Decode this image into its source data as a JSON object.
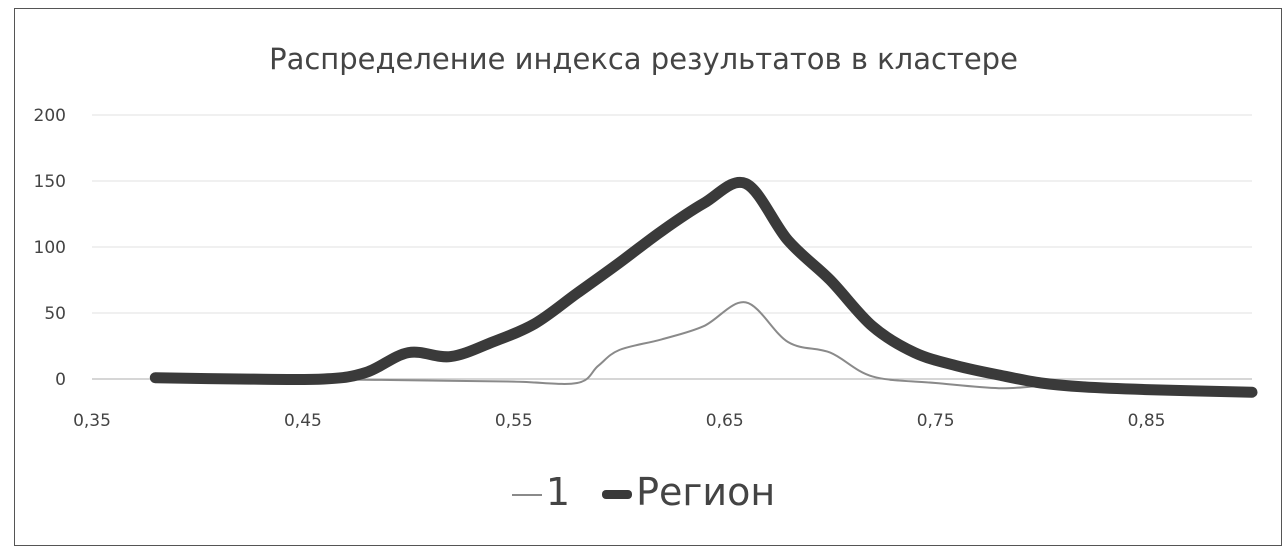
{
  "chart_data": {
    "type": "line",
    "title": "Распределение индекса результатов в кластере",
    "xlabel": "",
    "ylabel": "",
    "xlim": [
      0.35,
      0.9
    ],
    "ylim": [
      0,
      200
    ],
    "x_ticks": [
      "0,35",
      "0,45",
      "0,55",
      "0,65",
      "0,75",
      "0,85"
    ],
    "y_ticks": [
      "0",
      "50",
      "100",
      "150",
      "200"
    ],
    "grid": true,
    "legend_position": "bottom",
    "series": [
      {
        "name": "1",
        "color": "#8a8a8a",
        "x": [
          0.38,
          0.45,
          0.5,
          0.55,
          0.58,
          0.59,
          0.6,
          0.62,
          0.64,
          0.66,
          0.68,
          0.7,
          0.72,
          0.75,
          0.78,
          0.8
        ],
        "y": [
          0,
          0,
          -1,
          -2,
          -3,
          10,
          22,
          30,
          40,
          58,
          28,
          20,
          2,
          -3,
          -7,
          -5
        ]
      },
      {
        "name": "Регион",
        "color": "#3a3a3a",
        "x": [
          0.38,
          0.42,
          0.46,
          0.48,
          0.5,
          0.52,
          0.54,
          0.56,
          0.58,
          0.6,
          0.62,
          0.64,
          0.66,
          0.68,
          0.7,
          0.72,
          0.74,
          0.76,
          0.78,
          0.8,
          0.82,
          0.85,
          0.9
        ],
        "y": [
          1,
          0,
          0,
          5,
          20,
          17,
          28,
          42,
          65,
          88,
          112,
          133,
          148,
          105,
          75,
          40,
          20,
          10,
          3,
          -3,
          -6,
          -8,
          -10
        ]
      }
    ]
  }
}
